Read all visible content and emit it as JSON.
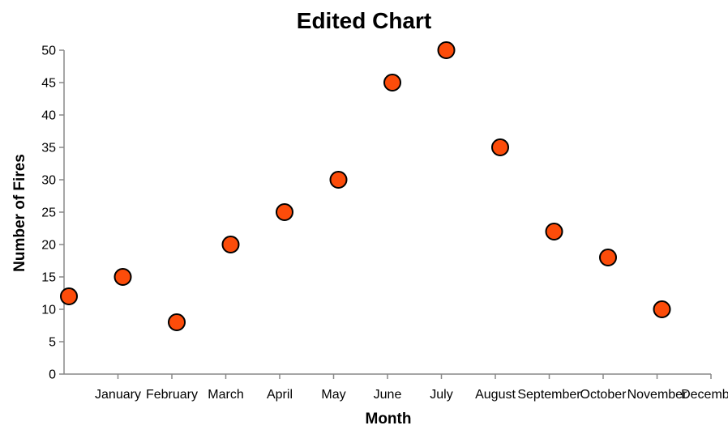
{
  "chart_data": {
    "type": "scatter",
    "title": "Edited Chart",
    "xlabel": "Month",
    "ylabel": "Number of Fires",
    "categories": [
      "January",
      "February",
      "March",
      "April",
      "May",
      "June",
      "July",
      "August",
      "September",
      "October",
      "November",
      "December"
    ],
    "series": [
      {
        "values": [
          12,
          15,
          8,
          20,
          25,
          30,
          45,
          50,
          35,
          22,
          18,
          10
        ]
      }
    ],
    "ylim": [
      0,
      50
    ],
    "yticks": [
      0,
      5,
      10,
      15,
      20,
      25,
      30,
      35,
      40,
      45,
      50
    ],
    "grid": false,
    "point_color": "#fc4c0a",
    "point_stroke": "#000000",
    "axis_color": "#888888"
  }
}
